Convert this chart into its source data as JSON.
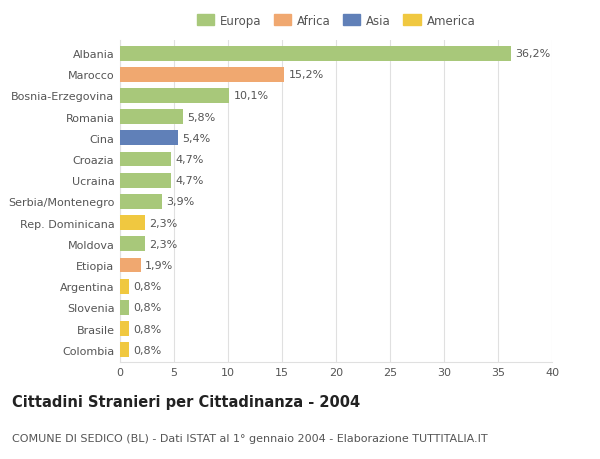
{
  "categories": [
    "Albania",
    "Marocco",
    "Bosnia-Erzegovina",
    "Romania",
    "Cina",
    "Croazia",
    "Ucraina",
    "Serbia/Montenegro",
    "Rep. Dominicana",
    "Moldova",
    "Etiopia",
    "Argentina",
    "Slovenia",
    "Brasile",
    "Colombia"
  ],
  "values": [
    36.2,
    15.2,
    10.1,
    5.8,
    5.4,
    4.7,
    4.7,
    3.9,
    2.3,
    2.3,
    1.9,
    0.8,
    0.8,
    0.8,
    0.8
  ],
  "labels": [
    "36,2%",
    "15,2%",
    "10,1%",
    "5,8%",
    "5,4%",
    "4,7%",
    "4,7%",
    "3,9%",
    "2,3%",
    "2,3%",
    "1,9%",
    "0,8%",
    "0,8%",
    "0,8%",
    "0,8%"
  ],
  "continents": [
    "Europa",
    "Africa",
    "Europa",
    "Europa",
    "Asia",
    "Europa",
    "Europa",
    "Europa",
    "America",
    "Europa",
    "Africa",
    "America",
    "Europa",
    "America",
    "America"
  ],
  "continent_colors": {
    "Europa": "#a8c87a",
    "Africa": "#f0a870",
    "Asia": "#6080b8",
    "America": "#f0c840"
  },
  "legend_order": [
    "Europa",
    "Africa",
    "Asia",
    "America"
  ],
  "title": "Cittadini Stranieri per Cittadinanza - 2004",
  "subtitle": "COMUNE DI SEDICO (BL) - Dati ISTAT al 1° gennaio 2004 - Elaborazione TUTTITALIA.IT",
  "xlim": [
    0,
    40
  ],
  "xticks": [
    0,
    5,
    10,
    15,
    20,
    25,
    30,
    35,
    40
  ],
  "background_color": "#ffffff",
  "plot_background": "#ffffff",
  "grid_color": "#e0e0e0",
  "bar_height": 0.7,
  "label_fontsize": 8,
  "title_fontsize": 10.5,
  "subtitle_fontsize": 8,
  "tick_fontsize": 8,
  "legend_fontsize": 8.5
}
